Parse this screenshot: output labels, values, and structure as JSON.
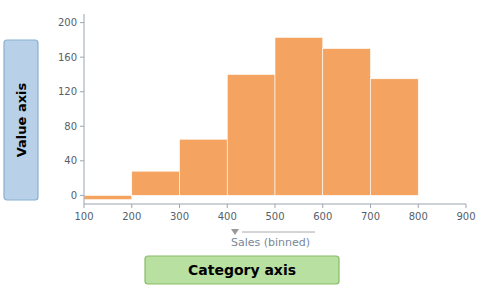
{
  "chart_data": {
    "type": "histogram",
    "bins": [
      100,
      200,
      300,
      400,
      500,
      600,
      700,
      800,
      900
    ],
    "values": [
      -5,
      28,
      65,
      140,
      183,
      170,
      135,
      0
    ],
    "color": "#F4A460",
    "xlim": [
      100,
      900
    ],
    "ylim": [
      -10,
      210
    ],
    "xticks": [
      100,
      200,
      300,
      400,
      500,
      600,
      700,
      800,
      900
    ],
    "yticks": [
      0,
      40,
      80,
      120,
      160,
      200
    ],
    "xlabel": "Sales (binned)",
    "ylabel": "Value axis",
    "annotations": [
      "Category axis"
    ]
  }
}
